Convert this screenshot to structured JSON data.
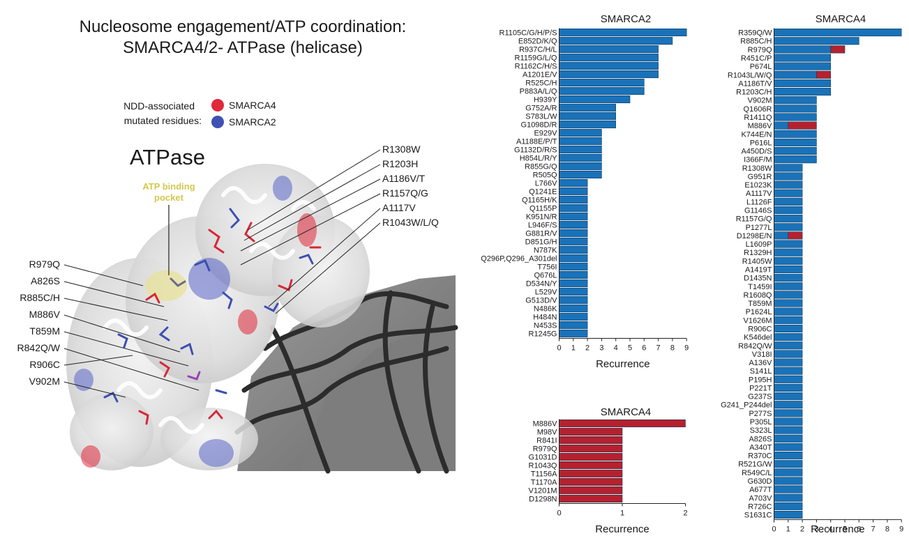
{
  "colors": {
    "smarca4": "#b5212e",
    "smarca2": "#1a72b8",
    "bar_edge": "#123a5c",
    "pocket": "#d9cf5a"
  },
  "figure": {
    "title_line1": "Nucleosome engagement/ATP coordination:",
    "title_line2": "SMARCA4/2- ATPase (helicase)",
    "legend_prefix_line1": "NDD-associated",
    "legend_prefix_line2": "mutated residues:",
    "legend_smarca4": "SMARCA4",
    "legend_smarca2": "SMARCA2",
    "structure_label": "ATPase",
    "pocket_line1": "ATP binding",
    "pocket_line2": "pocket",
    "callouts_right": [
      "R1308W",
      "R1203H",
      "A1186V/T",
      "R1157Q/G",
      "A1117V",
      "R1043W/L/Q"
    ],
    "callouts_left": [
      "R979Q",
      "A826S",
      "R885C/H",
      "M886V",
      "T859M",
      "R842Q/W",
      "R906C",
      "V902M"
    ]
  },
  "chart_data": [
    {
      "type": "bar",
      "orientation": "horizontal",
      "title": "SMARCA2",
      "xlabel": "Recurrence",
      "xlim": [
        0,
        9
      ],
      "xticks": [
        0,
        1,
        2,
        3,
        4,
        5,
        6,
        7,
        8,
        9
      ],
      "categories": [
        "R1105C/G/H/P/S",
        "E852D/K/Q",
        "R937C/H/L",
        "R1159G/L/Q",
        "R1162C/H/S",
        "A1201E/V",
        "R525C/H",
        "P883A/L/Q",
        "H939Y",
        "G752A/R",
        "S783L/W",
        "G1098D/R",
        "E929V",
        "A1188E/P/T",
        "G1132D/R/S",
        "H854L/R/Y",
        "R855G/Q",
        "R505Q",
        "L766V",
        "Q1241E",
        "Q1165H/K",
        "Q1155P",
        "K951N/R",
        "L946F/S",
        "G881R/V",
        "D851G/H",
        "N787K",
        "Q296P,Q296_A301del",
        "T756I",
        "Q676L",
        "D534N/Y",
        "L529V",
        "G513D/V",
        "N486K",
        "H484N",
        "N453S",
        "R1245G"
      ],
      "series": [
        {
          "name": "SMARCA2",
          "values": [
            9,
            8,
            7,
            7,
            7,
            7,
            6,
            6,
            5,
            4,
            4,
            4,
            3,
            3,
            3,
            3,
            3,
            3,
            2,
            2,
            2,
            2,
            2,
            2,
            2,
            2,
            2,
            2,
            2,
            2,
            2,
            2,
            2,
            2,
            2,
            2,
            2
          ]
        }
      ]
    },
    {
      "type": "bar",
      "orientation": "horizontal",
      "title": "SMARCA4",
      "xlabel": "Recurrence",
      "xlim": [
        0,
        2
      ],
      "xticks": [
        0,
        1,
        2
      ],
      "categories": [
        "M886V",
        "M98V",
        "R841I",
        "R979Q",
        "G1031D",
        "R1043Q",
        "T1156A",
        "T1170A",
        "V1201M",
        "D1298N"
      ],
      "series": [
        {
          "name": "SMARCA4",
          "values": [
            2,
            1,
            1,
            1,
            1,
            1,
            1,
            1,
            1,
            1
          ]
        }
      ]
    },
    {
      "type": "bar",
      "orientation": "horizontal",
      "stacked": true,
      "title": "SMARCA4",
      "xlabel": "Recurrence",
      "xlim": [
        0,
        9
      ],
      "xticks": [
        0,
        1,
        2,
        3,
        4,
        5,
        6,
        7,
        8,
        9
      ],
      "categories": [
        "R359Q/W",
        "R885C/H",
        "R979Q",
        "R451C/P",
        "P674L",
        "R1043L/W/Q",
        "A1186T/V",
        "R1203C/H",
        "V902M",
        "Q1606R",
        "R1411Q",
        "M886V",
        "K744E/N",
        "P616L",
        "A450D/S",
        "I366F/M",
        "R1308W",
        "G951R",
        "E1023K",
        "A1117V",
        "L1126F",
        "G1146S",
        "R1157G/Q",
        "P1277L",
        "D1298E/N",
        "L1609P",
        "R1329H",
        "R1405W",
        "A1419T",
        "D1435N",
        "T1459I",
        "R1608Q",
        "T859M",
        "P1624L",
        "V1626M",
        "R906C",
        "K546del",
        "R842Q/W",
        "V318I",
        "A136V",
        "S141L",
        "P195H",
        "P221T",
        "G237S",
        "G241_P244del",
        "P277S",
        "P305L",
        "S323L",
        "A826S",
        "A340T",
        "R370C",
        "R521G/W",
        "R549C/L",
        "G630D",
        "A677T",
        "A703V",
        "R726C",
        "S1631C"
      ],
      "series": [
        {
          "name": "SMARCA4",
          "values": [
            9,
            6,
            4,
            4,
            4,
            3,
            4,
            4,
            3,
            3,
            3,
            1,
            3,
            3,
            3,
            3,
            2,
            2,
            2,
            2,
            2,
            2,
            2,
            2,
            1,
            2,
            2,
            2,
            2,
            2,
            2,
            2,
            2,
            2,
            2,
            2,
            2,
            2,
            2,
            2,
            2,
            2,
            2,
            2,
            2,
            2,
            2,
            2,
            2,
            2,
            2,
            2,
            2,
            2,
            2,
            2,
            2,
            2
          ]
        },
        {
          "name": "",
          "values": [
            0,
            0,
            1,
            0,
            0,
            1,
            0,
            0,
            0,
            0,
            0,
            2,
            0,
            0,
            0,
            0,
            0,
            0,
            0,
            0,
            0,
            0,
            0,
            0,
            1,
            0,
            0,
            0,
            0,
            0,
            0,
            0,
            0,
            0,
            0,
            0,
            0,
            0,
            0,
            0,
            0,
            0,
            0,
            0,
            0,
            0,
            0,
            0,
            0,
            0,
            0,
            0,
            0,
            0,
            0,
            0,
            0,
            0
          ]
        }
      ]
    }
  ]
}
